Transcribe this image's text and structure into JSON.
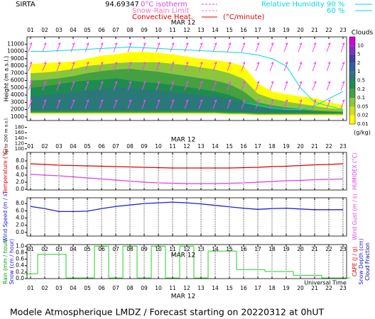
{
  "header": {
    "station": "SIRTA",
    "coords": "94.69347",
    "isotherm": "0°C isotherm",
    "snow_rain": "Snow-Rain Limit",
    "convective": "Convective Heat.",
    "convective_unit": "(°C/minute)",
    "rh_title": "Relative Humidity"
  },
  "footer": "Modele Atmospherique LMDZ / Forecast starting on 20220312 at 0hUT",
  "chart_data": [
    {
      "type": "contour",
      "date_label": "MAR 12",
      "ylabel": "Height (m a.s.l.)",
      "low_label": "Up to 200 m a.s.l.",
      "x": [
        1,
        2,
        3,
        4,
        5,
        6,
        7,
        8,
        9,
        10,
        11,
        12,
        13,
        14,
        15,
        16,
        17,
        18,
        19,
        20,
        21,
        22,
        23
      ],
      "xlim": [
        0.75,
        23.25
      ],
      "xticks": [
        {
          "value": 1,
          "label": "01"
        },
        {
          "value": 2,
          "label": "02"
        },
        {
          "value": 3,
          "label": "03"
        },
        {
          "value": 4,
          "label": "04"
        },
        {
          "value": 5,
          "label": "05"
        },
        {
          "value": 6,
          "label": "06"
        },
        {
          "value": 7,
          "label": "07"
        },
        {
          "value": 8,
          "label": "08"
        },
        {
          "value": 9,
          "label": "09"
        },
        10,
        11,
        12,
        13,
        14,
        15,
        16,
        17,
        18,
        19,
        20,
        21,
        22,
        23
      ],
      "ylim": [
        500,
        12000
      ],
      "yticks": [
        1000,
        2000,
        3000,
        4000,
        5000,
        6000,
        7000,
        8000,
        9000,
        10000,
        11000
      ],
      "low_ylim": [
        100,
        200
      ],
      "low_yticks": [
        100,
        120,
        140,
        160,
        180
      ],
      "bands": [
        {
          "color": "#ffff00",
          "top": [
            8300,
            8400,
            8500,
            8600,
            9000,
            9400,
            9600,
            9900,
            9900,
            9800,
            9600,
            9300,
            9000,
            8800,
            8500,
            8000,
            5600,
            4500,
            4100,
            3800,
            3600,
            3000,
            2650
          ],
          "bottom": [
            1400,
            1400,
            1400,
            1400,
            1400,
            1400,
            1400,
            1400,
            1400,
            1400,
            1400,
            1400,
            1400,
            1400,
            1300,
            1300,
            1200,
            1200,
            1200,
            1200,
            1200,
            1200,
            1200
          ]
        },
        {
          "color": "#8cc63f",
          "top": [
            7000,
            7100,
            7300,
            7600,
            8000,
            8200,
            8400,
            8500,
            8500,
            8500,
            8300,
            8100,
            7800,
            7500,
            7000,
            6200,
            4200,
            3500,
            3100,
            2800,
            2500,
            2200,
            2000
          ],
          "bottom": [
            1500,
            1500,
            1500,
            1500,
            1500,
            1500,
            1500,
            1500,
            1500,
            1500,
            1500,
            1500,
            1500,
            1500,
            1400,
            1400,
            1300,
            1300,
            1300,
            1300,
            1300,
            1300,
            1300
          ]
        },
        {
          "color": "#44a040",
          "top": [
            6000,
            6100,
            6300,
            6600,
            7000,
            7300,
            7500,
            7600,
            7400,
            7200,
            6900,
            6600,
            6300,
            6000,
            5500,
            4500,
            3000,
            2600,
            2300,
            2100,
            1900,
            1800,
            1700
          ],
          "bottom": [
            1600,
            1600,
            1600,
            1600,
            1600,
            1600,
            1600,
            1600,
            1600,
            1600,
            1600,
            1600,
            1600,
            1600,
            1500,
            1500,
            1400,
            1400,
            1400,
            1400,
            1400,
            1400,
            1400
          ]
        },
        {
          "color": "#1e8c50",
          "top": [
            5000,
            5200,
            5500,
            5800,
            6000,
            6100,
            6300,
            6000,
            5800,
            5600,
            5400,
            5100,
            4800,
            4500,
            4000,
            3200,
            2500,
            2200,
            2000,
            1900,
            1800,
            1700,
            1600
          ],
          "bottom": [
            1700,
            1700,
            1700,
            1700,
            1700,
            1700,
            1700,
            1700,
            1700,
            1700,
            1700,
            1700,
            1700,
            1700,
            1600,
            1600,
            1500,
            1500,
            1500,
            1500,
            1500,
            1500,
            1500
          ]
        },
        {
          "color": "#2a7878",
          "top": [
            3800,
            4000,
            4200,
            4400,
            4600,
            4800,
            5000,
            5000,
            4800,
            4600,
            4400,
            4200,
            4000,
            3800,
            3500,
            2800,
            2300,
            2000,
            1900,
            1800,
            1700,
            1600,
            1550
          ],
          "bottom": [
            1900,
            1900,
            1900,
            1900,
            1900,
            1900,
            1900,
            1900,
            1900,
            1900,
            1900,
            1900,
            1900,
            1900,
            1800,
            1700,
            1600,
            1600,
            1600,
            1600,
            1600,
            1600,
            1600
          ]
        }
      ],
      "series": [
        {
          "name": "90 %",
          "color": "#00d8e8",
          "values": [
            null,
            null,
            null,
            null,
            null,
            null,
            null,
            null,
            null,
            null,
            null,
            null,
            null,
            null,
            null,
            3000,
            2600,
            2200,
            2000,
            2000,
            2500,
            3500,
            4500
          ]
        },
        {
          "name": "60 %",
          "color": "#00d8e8",
          "values": [
            10000,
            10000,
            10100,
            10200,
            10300,
            10400,
            10500,
            10600,
            10500,
            10400,
            10300,
            10200,
            10100,
            10000,
            9900,
            9800,
            9500,
            9000,
            8000,
            5000,
            3000,
            2500,
            2000
          ]
        }
      ],
      "colorbar": {
        "title": "Clouds",
        "unit": "(g/kg)",
        "levels": [
          0.01,
          0.02,
          0.05,
          0.1,
          0.2,
          0.5,
          1,
          2,
          5,
          10
        ],
        "colors": [
          "#ffff00",
          "#d0e020",
          "#8cc63f",
          "#44a040",
          "#1e8c50",
          "#2a7878",
          "#3060a0",
          "#4040a0",
          "#8030c0",
          "#d000e0"
        ]
      }
    },
    {
      "type": "line",
      "date_label": "MAR 12",
      "grid": true,
      "left_labels": [
        {
          "text": "Temperature (°C)",
          "color": "#e00000"
        }
      ],
      "right_labels": [
        {
          "text": "HUMIDEX (°C)",
          "color": "#e040e0"
        }
      ],
      "x": [
        1,
        2,
        3,
        4,
        5,
        6,
        7,
        8,
        9,
        10,
        11,
        12,
        13,
        14,
        15,
        16,
        17,
        18,
        19,
        20,
        21,
        22,
        23
      ],
      "xlim": [
        0.75,
        23.25
      ],
      "xticks": [
        {
          "value": 1,
          "label": "01"
        },
        {
          "value": 2,
          "label": "02"
        },
        {
          "value": 3,
          "label": "03"
        },
        {
          "value": 4,
          "label": "04"
        },
        {
          "value": 5,
          "label": "05"
        },
        {
          "value": 6,
          "label": "06"
        },
        {
          "value": 7,
          "label": "07"
        },
        {
          "value": 8,
          "label": "08"
        },
        {
          "value": 9,
          "label": "09"
        },
        10,
        11,
        12,
        13,
        14,
        15,
        16,
        17,
        18,
        19,
        20,
        21,
        22,
        23
      ],
      "ylim": [
        -0.2,
        10.4
      ],
      "yticks": [
        {
          "value": 0,
          "label": "0.0"
        },
        {
          "value": 2,
          "label": "2.0"
        },
        {
          "value": 4,
          "label": "4.0"
        },
        {
          "value": 6,
          "label": "6.0"
        },
        {
          "value": 8,
          "label": "8.0"
        }
      ],
      "series": [
        {
          "color": "#e00000",
          "values": [
            7.2,
            7.0,
            6.8,
            6.7,
            6.6,
            6.5,
            6.4,
            6.3,
            6.2,
            6.1,
            6.0,
            6.0,
            6.0,
            6.0,
            6.0,
            6.1,
            6.2,
            6.4,
            6.5,
            6.7,
            6.9,
            7.0,
            7.2
          ]
        },
        {
          "color": "#e040e0",
          "values": [
            4.2,
            4.0,
            3.8,
            3.5,
            3.2,
            2.9,
            2.6,
            2.3,
            2.0,
            1.8,
            1.7,
            1.6,
            1.6,
            1.6,
            1.7,
            1.8,
            2.0,
            2.2,
            2.4,
            2.5,
            2.7,
            2.8,
            2.9
          ]
        }
      ]
    },
    {
      "type": "line",
      "grid": true,
      "left_labels": [
        {
          "text": "Wind Speed (m / s)",
          "color": "#2020d0"
        }
      ],
      "right_labels": [
        {
          "text": "Wind Gust (m / s)",
          "color": "#e040e0"
        }
      ],
      "x": [
        1,
        2,
        3,
        4,
        5,
        6,
        7,
        8,
        9,
        10,
        11,
        12,
        13,
        14,
        15,
        16,
        17,
        18,
        19,
        20,
        21,
        22,
        23
      ],
      "xlim": [
        0.75,
        23.25
      ],
      "xticks": [
        {
          "value": 1,
          "label": "01"
        },
        {
          "value": 2,
          "label": "02"
        },
        {
          "value": 3,
          "label": "03"
        },
        {
          "value": 4,
          "label": "04"
        },
        {
          "value": 5,
          "label": "05"
        },
        {
          "value": 6,
          "label": "06"
        },
        {
          "value": 7,
          "label": "07"
        },
        {
          "value": 8,
          "label": "08"
        },
        {
          "value": 9,
          "label": "09"
        },
        10,
        11,
        12,
        13,
        14,
        15,
        16,
        17,
        18,
        19,
        20,
        21,
        22,
        23
      ],
      "ylim": [
        -1,
        9.6
      ],
      "yticks": [
        {
          "value": 0,
          "label": "0.0"
        },
        {
          "value": 2,
          "label": "2.0"
        },
        {
          "value": 4,
          "label": "4.0"
        },
        {
          "value": 6,
          "label": "6.0"
        },
        {
          "value": 8,
          "label": "8.0"
        }
      ],
      "series": [
        {
          "color": "#2020d0",
          "values": [
            7.2,
            6.6,
            5.8,
            5.8,
            5.9,
            6.6,
            7.2,
            7.6,
            8.0,
            8.2,
            8.4,
            8.2,
            7.9,
            7.5,
            7.1,
            6.7,
            6.4,
            6.6,
            6.7,
            6.5,
            6.3,
            6.3,
            6.3
          ]
        }
      ]
    },
    {
      "type": "step",
      "date_label": "MAR 12",
      "xlabel": "Universal Time",
      "grid": true,
      "left_labels": [
        {
          "text": "Rain (mm / hour)",
          "color": "#00a000"
        },
        {
          "text": "Snow (cm / hour)",
          "color": "#2020d0"
        }
      ],
      "right_labels": [
        {
          "text": "CAPE (J / g)",
          "color": "#e00000"
        },
        {
          "text": "Snow Depth (cm)",
          "color": "#2020d0"
        },
        {
          "text": "Cloud Fraction",
          "color": "#000080"
        }
      ],
      "x": [
        1,
        2,
        3,
        4,
        5,
        6,
        7,
        8,
        9,
        10,
        11,
        12,
        13,
        14,
        15,
        16,
        17,
        18,
        19,
        20,
        21,
        22,
        23
      ],
      "xlim": [
        0.75,
        23.25
      ],
      "xticks": [
        {
          "value": 1,
          "label": "01"
        },
        {
          "value": 2,
          "label": "02"
        },
        {
          "value": 3,
          "label": "03"
        },
        {
          "value": 4,
          "label": "04"
        },
        {
          "value": 5,
          "label": "05"
        },
        {
          "value": 6,
          "label": "06"
        },
        {
          "value": 7,
          "label": "07"
        },
        {
          "value": 8,
          "label": "08"
        },
        {
          "value": 9,
          "label": "09"
        },
        10,
        11,
        12,
        13,
        14,
        15,
        16,
        17,
        18,
        19,
        20,
        21,
        22,
        23
      ],
      "ylim": [
        0,
        1.05
      ],
      "yticks": [
        {
          "value": 0,
          "label": "0.0"
        },
        {
          "value": 0.2,
          "label": "0.2"
        },
        {
          "value": 0.4,
          "label": "0.4"
        },
        {
          "value": 0.6,
          "label": "0.6"
        },
        {
          "value": 0.8,
          "label": "0.8"
        },
        {
          "value": 1,
          "label": "1.0"
        }
      ],
      "series": [
        {
          "color": "#20d020",
          "values": [
            0.15,
            0.75,
            0.75,
            0.02,
            0.02,
            1,
            0.02,
            1,
            0.02,
            1,
            0.02,
            1,
            0.02,
            0.85,
            0.85,
            0.28,
            0.28,
            0.22,
            0.22,
            0.1,
            0.1,
            0.02,
            0.02
          ]
        }
      ]
    }
  ]
}
